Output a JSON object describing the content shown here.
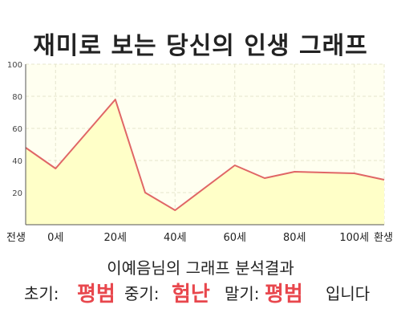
{
  "title": "재미로 보는 당신의 인생 그래프",
  "subtitle": "이예음님의 그래프 분석결과",
  "result": {
    "early_label": "초기:",
    "early_value": "평범",
    "middle_label": "중기:",
    "middle_value": "험난",
    "late_label": "말기:",
    "late_value": "평범",
    "suffix": "입니다"
  },
  "colors": {
    "line": "#e06666",
    "fill": "#ffffc8",
    "plot_bg": "#fffff0",
    "grid": "#e4e4cc",
    "accent": "#e8474d"
  },
  "chart_data": {
    "type": "area",
    "title": "",
    "xlabel": "",
    "ylabel": "",
    "ylim": [
      0,
      100
    ],
    "yticks": [
      20,
      40,
      60,
      80,
      100
    ],
    "x_tick_labels": [
      {
        "x": -10,
        "label": "전생"
      },
      {
        "x": 0,
        "label": "0세"
      },
      {
        "x": 20,
        "label": "20세"
      },
      {
        "x": 40,
        "label": "40세"
      },
      {
        "x": 60,
        "label": "60세"
      },
      {
        "x": 80,
        "label": "80세"
      },
      {
        "x": 100,
        "label": "100세"
      },
      {
        "x": 110,
        "label": "환생"
      }
    ],
    "x": [
      -10,
      0,
      20,
      30,
      40,
      60,
      70,
      80,
      100,
      110
    ],
    "values": [
      48,
      35,
      78,
      20,
      9,
      37,
      29,
      33,
      32,
      28
    ],
    "grid": true
  }
}
